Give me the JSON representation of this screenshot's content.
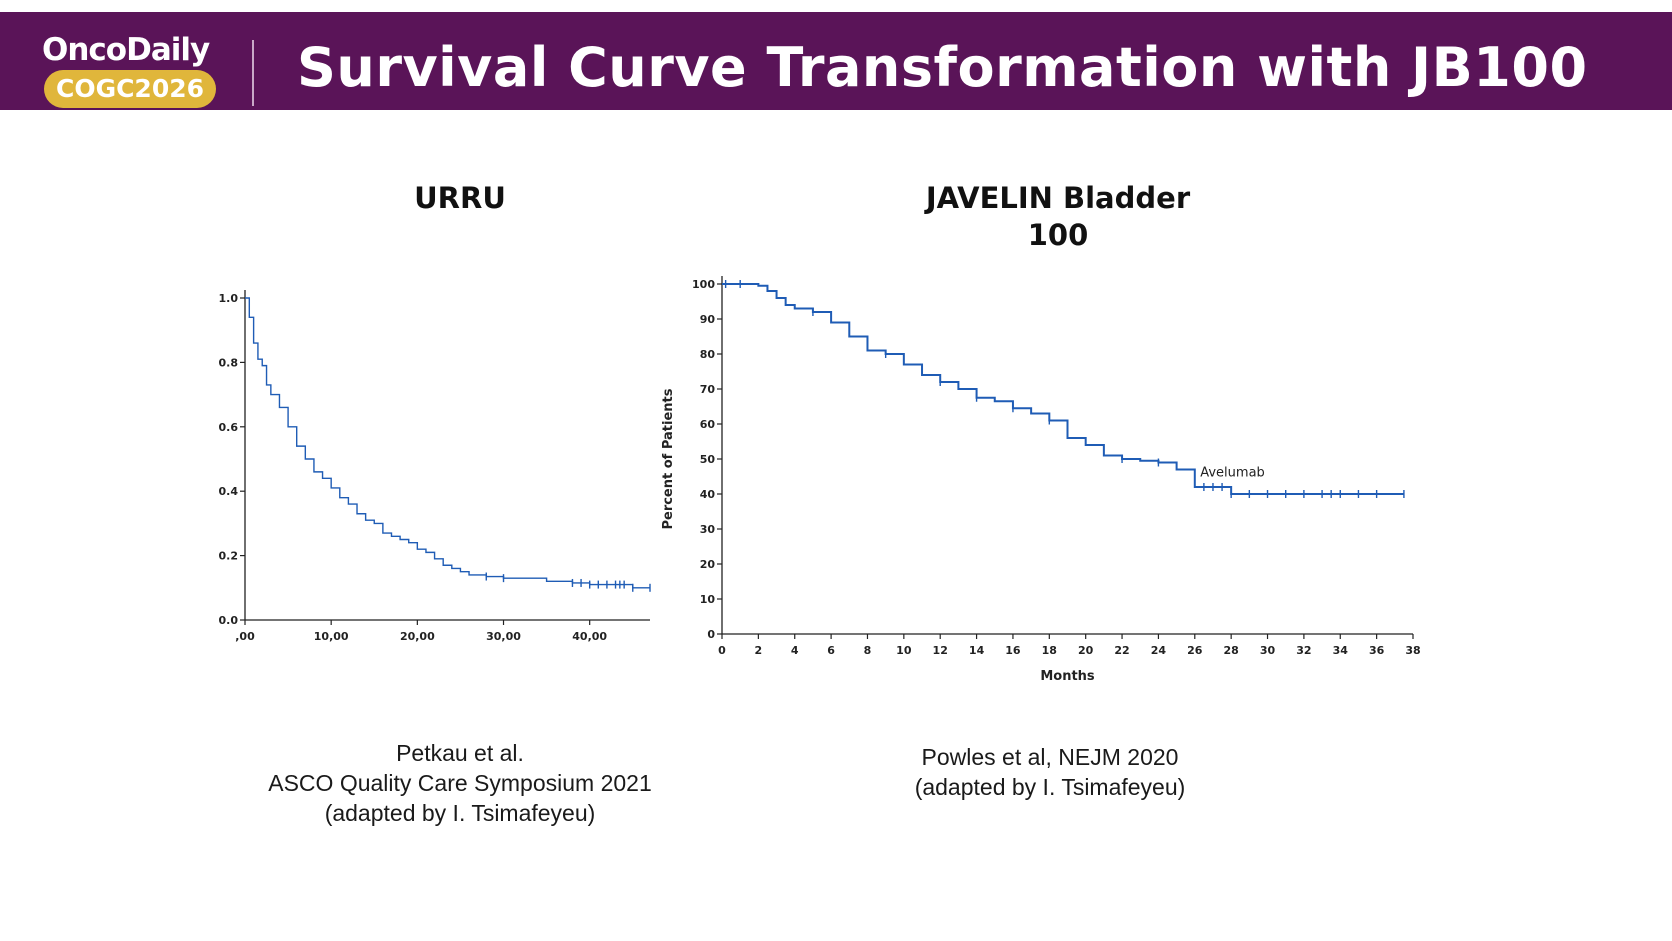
{
  "header": {
    "brand": "OncoDaily",
    "badge": "COGC2026",
    "title": "Survival Curve Transformation with JB100"
  },
  "colors": {
    "header_bg": "#5a1458",
    "badge": "#e0b63b",
    "curve": "#1f5cb5"
  },
  "left_panel": {
    "title": "URRU",
    "citation_lines": [
      "Petkau et al.",
      "ASCO Quality Care Symposium 2021",
      "(adapted by I. Tsimafeyeu)"
    ]
  },
  "right_panel": {
    "title_lines": [
      "JAVELIN Bladder",
      "100"
    ],
    "citation_lines": [
      "Powles et al, NEJM 2020",
      "(adapted by I. Tsimafeyeu)"
    ]
  },
  "chart_data": [
    {
      "type": "line",
      "style": "step",
      "title": "URRU",
      "xlabel": "",
      "ylabel": "",
      "xlim": [
        0,
        47
      ],
      "ylim": [
        0,
        1.0
      ],
      "xticks": [
        0,
        10,
        20,
        30,
        40
      ],
      "xtick_labels": [
        ",00",
        "10,00",
        "20,00",
        "30,00",
        "40,00"
      ],
      "yticks": [
        0.0,
        0.2,
        0.4,
        0.6,
        0.8,
        1.0
      ],
      "ytick_labels": [
        "0.0",
        "0.2",
        "0.4",
        "0.6",
        "0.8",
        "1.0"
      ],
      "grid": false,
      "series": [
        {
          "x": [
            0,
            0.5,
            1,
            1.5,
            2,
            2.5,
            3,
            4,
            5,
            6,
            7,
            8,
            9,
            10,
            11,
            12,
            13,
            14,
            15,
            16,
            17,
            18,
            19,
            20,
            21,
            22,
            23,
            24,
            25,
            26,
            28,
            30,
            32,
            35,
            38,
            40,
            43,
            45,
            47
          ],
          "y": [
            1.0,
            0.94,
            0.86,
            0.81,
            0.79,
            0.73,
            0.7,
            0.66,
            0.6,
            0.54,
            0.5,
            0.46,
            0.44,
            0.41,
            0.38,
            0.36,
            0.33,
            0.31,
            0.3,
            0.27,
            0.26,
            0.25,
            0.24,
            0.22,
            0.21,
            0.19,
            0.17,
            0.16,
            0.15,
            0.14,
            0.135,
            0.13,
            0.13,
            0.12,
            0.115,
            0.11,
            0.11,
            0.1,
            0.1
          ],
          "censor_x": [
            28,
            30,
            38,
            39,
            40,
            41,
            42,
            43,
            43.5,
            44,
            45,
            47
          ]
        }
      ]
    },
    {
      "type": "line",
      "style": "step",
      "title": "JAVELIN Bladder 100",
      "xlabel": "Months",
      "ylabel": "Percent of Patients",
      "xlim": [
        0,
        38
      ],
      "ylim": [
        0,
        100
      ],
      "xticks": [
        0,
        2,
        4,
        6,
        8,
        10,
        12,
        14,
        16,
        18,
        20,
        22,
        24,
        26,
        28,
        30,
        32,
        34,
        36,
        38
      ],
      "yticks": [
        0,
        10,
        20,
        30,
        40,
        50,
        60,
        70,
        80,
        90,
        100
      ],
      "grid": false,
      "series": [
        {
          "name": "Avelumab",
          "x": [
            0,
            1,
            2,
            2.5,
            3,
            3.5,
            4,
            5,
            6,
            7,
            8,
            9,
            10,
            11,
            12,
            13,
            14,
            15,
            16,
            17,
            18,
            19,
            20,
            21,
            22,
            23,
            24,
            25,
            26,
            27,
            28,
            30,
            32,
            34,
            36,
            37.5
          ],
          "y": [
            100,
            100,
            99.5,
            98,
            96,
            94,
            93,
            92,
            89,
            85,
            81,
            80,
            77,
            74,
            72,
            70,
            67.5,
            66.5,
            64.5,
            63,
            61,
            56,
            54,
            51,
            50,
            49.5,
            49,
            47,
            42,
            42,
            40,
            40,
            40,
            40,
            40,
            40
          ],
          "censor_x": [
            0.2,
            1,
            5,
            9,
            12,
            14,
            16,
            18,
            22,
            24,
            26.5,
            27,
            27.5,
            28,
            29,
            30,
            31,
            32,
            33,
            33.5,
            34,
            35,
            36,
            37.5
          ]
        }
      ]
    }
  ]
}
